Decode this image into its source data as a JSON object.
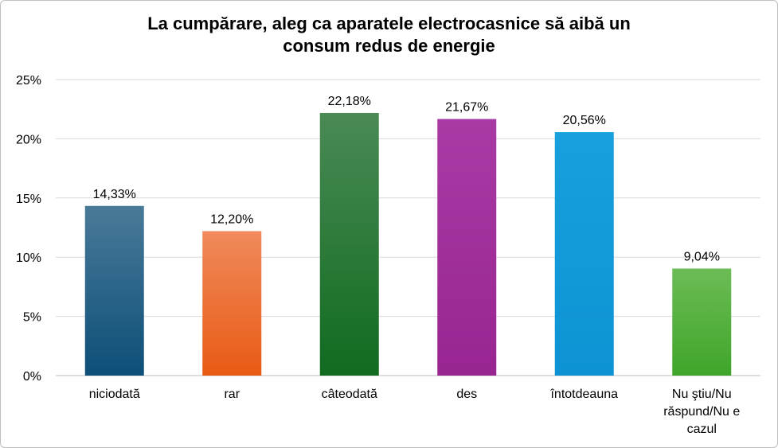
{
  "chart_data": {
    "type": "bar",
    "title_lines": [
      "La cumpărare, aleg ca aparatele electrocasnice să aibă un",
      "consum redus de energie"
    ],
    "categories": [
      [
        "niciodată"
      ],
      [
        "rar"
      ],
      [
        "câteodată"
      ],
      [
        "des"
      ],
      [
        "întotdeauna"
      ],
      [
        "Nu ştiu/Nu",
        "răspund/Nu e",
        "cazul"
      ]
    ],
    "values": [
      14.33,
      12.2,
      22.18,
      21.67,
      20.56,
      9.04
    ],
    "data_labels": [
      "14,33%",
      "12,20%",
      "22,18%",
      "21,67%",
      "20,56%",
      "9,04%"
    ],
    "ylim": [
      0,
      25
    ],
    "yticks": [
      0,
      5,
      10,
      15,
      20,
      25
    ],
    "ytick_labels": [
      "0%",
      "5%",
      "10%",
      "15%",
      "20%",
      "25%"
    ],
    "grid": true,
    "legend": "none",
    "bar_colors": [
      [
        "#4a7a99",
        "#0d4f78"
      ],
      [
        "#f08a5c",
        "#e85a14"
      ],
      [
        "#4a8a55",
        "#106b20"
      ],
      [
        "#a83aa6",
        "#982592"
      ],
      [
        "#17a0dc",
        "#0d93d3"
      ],
      [
        "#6cbc55",
        "#3fa52a"
      ]
    ]
  }
}
